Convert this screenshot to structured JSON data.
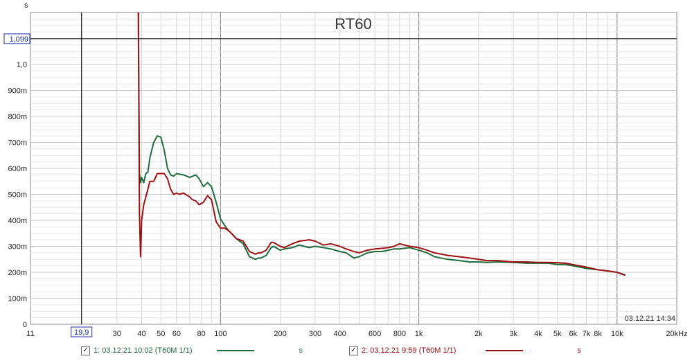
{
  "chart_data": {
    "type": "line",
    "title": "RT60",
    "ylabel": "s",
    "xlabel": "",
    "x_scale": "log",
    "xlim": [
      11,
      20000
    ],
    "ylim": [
      0,
      1.2
    ],
    "grid": true,
    "x_ticks": [
      {
        "value": 11,
        "label": "11"
      },
      {
        "value": 30,
        "label": "30"
      },
      {
        "value": 40,
        "label": "40"
      },
      {
        "value": 50,
        "label": "50"
      },
      {
        "value": 60,
        "label": "60"
      },
      {
        "value": 80,
        "label": "80"
      },
      {
        "value": 100,
        "label": "100"
      },
      {
        "value": 200,
        "label": "200"
      },
      {
        "value": 300,
        "label": "300"
      },
      {
        "value": 400,
        "label": "400"
      },
      {
        "value": 600,
        "label": "600"
      },
      {
        "value": 800,
        "label": "800"
      },
      {
        "value": 1000,
        "label": "1k"
      },
      {
        "value": 2000,
        "label": "2k"
      },
      {
        "value": 3000,
        "label": "3k"
      },
      {
        "value": 4000,
        "label": "4k"
      },
      {
        "value": 5000,
        "label": "5k"
      },
      {
        "value": 6000,
        "label": "6k"
      },
      {
        "value": 7000,
        "label": "7k"
      },
      {
        "value": 8000,
        "label": "8k"
      },
      {
        "value": 10000,
        "label": "10k"
      },
      {
        "value": 20000,
        "label": "20kHz"
      }
    ],
    "y_ticks": [
      {
        "value": 0,
        "label": "0"
      },
      {
        "value": 0.1,
        "label": "100m"
      },
      {
        "value": 0.2,
        "label": "200m"
      },
      {
        "value": 0.3,
        "label": "300m"
      },
      {
        "value": 0.4,
        "label": "400m"
      },
      {
        "value": 0.5,
        "label": "500m"
      },
      {
        "value": 0.6,
        "label": "600m"
      },
      {
        "value": 0.7,
        "label": "700m"
      },
      {
        "value": 0.8,
        "label": "800m"
      },
      {
        "value": 0.9,
        "label": "900m"
      },
      {
        "value": 1.0,
        "label": "1,0"
      }
    ],
    "cursor": {
      "x": 19.9,
      "x_label": "19,9",
      "y": 1.099,
      "y_label": "1,099"
    },
    "timestamp": "03.12.21 14:34",
    "series": [
      {
        "name": "1: 03.12.21 10:02 (T60M 1/1)",
        "unit": "s",
        "color": "#1e6b3c",
        "checked": true,
        "x": [
          38.5,
          39,
          39.5,
          40,
          41,
          42,
          43,
          44,
          46,
          48,
          50,
          52,
          54,
          56,
          58,
          60,
          62,
          65,
          70,
          75,
          78,
          82,
          86,
          90,
          95,
          100,
          105,
          110,
          115,
          120,
          130,
          140,
          150,
          155,
          160,
          170,
          180,
          185,
          190,
          200,
          210,
          230,
          250,
          280,
          300,
          330,
          360,
          400,
          430,
          450,
          470,
          500,
          550,
          600,
          650,
          700,
          750,
          800,
          900,
          1000,
          1100,
          1200,
          1400,
          1600,
          1800,
          2000,
          2200,
          2500,
          3000,
          3500,
          4000,
          4500,
          5000,
          5500,
          6000,
          7000,
          8000,
          9000,
          10000,
          11000
        ],
        "y": [
          1.28,
          0.58,
          0.545,
          0.565,
          0.545,
          0.58,
          0.585,
          0.64,
          0.7,
          0.725,
          0.72,
          0.67,
          0.6,
          0.575,
          0.57,
          0.58,
          0.578,
          0.575,
          0.565,
          0.575,
          0.56,
          0.53,
          0.545,
          0.53,
          0.47,
          0.405,
          0.38,
          0.36,
          0.345,
          0.33,
          0.31,
          0.26,
          0.25,
          0.255,
          0.255,
          0.265,
          0.295,
          0.3,
          0.295,
          0.285,
          0.29,
          0.295,
          0.305,
          0.295,
          0.3,
          0.295,
          0.29,
          0.28,
          0.275,
          0.265,
          0.255,
          0.26,
          0.275,
          0.28,
          0.28,
          0.285,
          0.29,
          0.29,
          0.295,
          0.285,
          0.275,
          0.26,
          0.25,
          0.245,
          0.24,
          0.24,
          0.238,
          0.24,
          0.238,
          0.235,
          0.235,
          0.235,
          0.23,
          0.23,
          0.225,
          0.215,
          0.21,
          0.205,
          0.2,
          0.19
        ]
      },
      {
        "name": "2: 03.12.21 9:59 (T60M 1/1)",
        "unit": "s",
        "color": "#a00f10",
        "checked": true,
        "x": [
          38.5,
          39,
          39.5,
          40,
          41,
          42,
          43,
          44,
          46,
          48,
          50,
          52,
          54,
          56,
          58,
          60,
          62,
          65,
          70,
          72,
          75,
          78,
          82,
          86,
          90,
          95,
          100,
          105,
          110,
          115,
          120,
          130,
          140,
          150,
          155,
          160,
          170,
          175,
          180,
          185,
          190,
          200,
          210,
          230,
          250,
          280,
          300,
          330,
          360,
          400,
          430,
          450,
          470,
          500,
          550,
          600,
          650,
          700,
          750,
          800,
          900,
          1000,
          1100,
          1200,
          1400,
          1600,
          1800,
          2000,
          2200,
          2500,
          3000,
          3500,
          4000,
          4500,
          5000,
          5500,
          6000,
          7000,
          8000,
          9000,
          10000,
          11000
        ],
        "y": [
          1.28,
          0.43,
          0.26,
          0.4,
          0.46,
          0.49,
          0.52,
          0.55,
          0.55,
          0.58,
          0.58,
          0.58,
          0.56,
          0.52,
          0.5,
          0.505,
          0.5,
          0.505,
          0.49,
          0.48,
          0.475,
          0.46,
          0.47,
          0.495,
          0.48,
          0.395,
          0.37,
          0.37,
          0.36,
          0.345,
          0.33,
          0.32,
          0.28,
          0.27,
          0.275,
          0.275,
          0.285,
          0.3,
          0.315,
          0.315,
          0.31,
          0.3,
          0.295,
          0.31,
          0.32,
          0.325,
          0.32,
          0.305,
          0.31,
          0.3,
          0.29,
          0.285,
          0.28,
          0.275,
          0.285,
          0.29,
          0.292,
          0.295,
          0.3,
          0.31,
          0.3,
          0.295,
          0.285,
          0.275,
          0.265,
          0.26,
          0.255,
          0.25,
          0.245,
          0.245,
          0.24,
          0.24,
          0.238,
          0.238,
          0.237,
          0.235,
          0.23,
          0.22,
          0.21,
          0.205,
          0.2,
          0.188
        ]
      }
    ]
  }
}
